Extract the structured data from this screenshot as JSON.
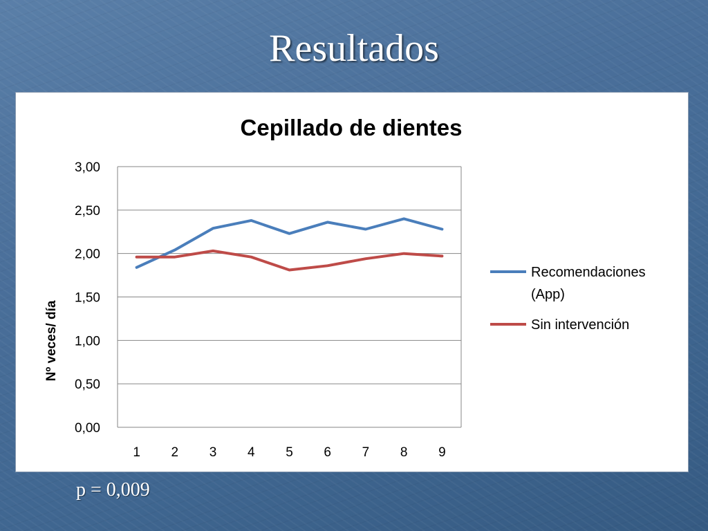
{
  "slide": {
    "title": "Resultados",
    "footnote": "p = 0,009"
  },
  "chart_data": {
    "type": "line",
    "title": "Cepillado de dientes",
    "xlabel": "",
    "ylabel": "Nº veces/ día",
    "categories": [
      "1",
      "2",
      "3",
      "4",
      "5",
      "6",
      "7",
      "8",
      "9"
    ],
    "ylim": [
      0,
      3
    ],
    "yticks": [
      "0,00",
      "0,50",
      "1,00",
      "1,50",
      "2,00",
      "2,50",
      "3,00"
    ],
    "grid": true,
    "legend_position": "right",
    "series": [
      {
        "name": "Recomendaciones (App)",
        "name_lines": [
          "Recomendaciones",
          "(App)"
        ],
        "color": "#4a7ebb",
        "values": [
          1.84,
          2.04,
          2.29,
          2.38,
          2.23,
          2.36,
          2.28,
          2.4,
          2.28
        ]
      },
      {
        "name": "Sin intervención",
        "name_lines": [
          "Sin intervención"
        ],
        "color": "#be4b48",
        "values": [
          1.96,
          1.96,
          2.03,
          1.96,
          1.81,
          1.86,
          1.94,
          2.0,
          1.97
        ]
      }
    ]
  }
}
